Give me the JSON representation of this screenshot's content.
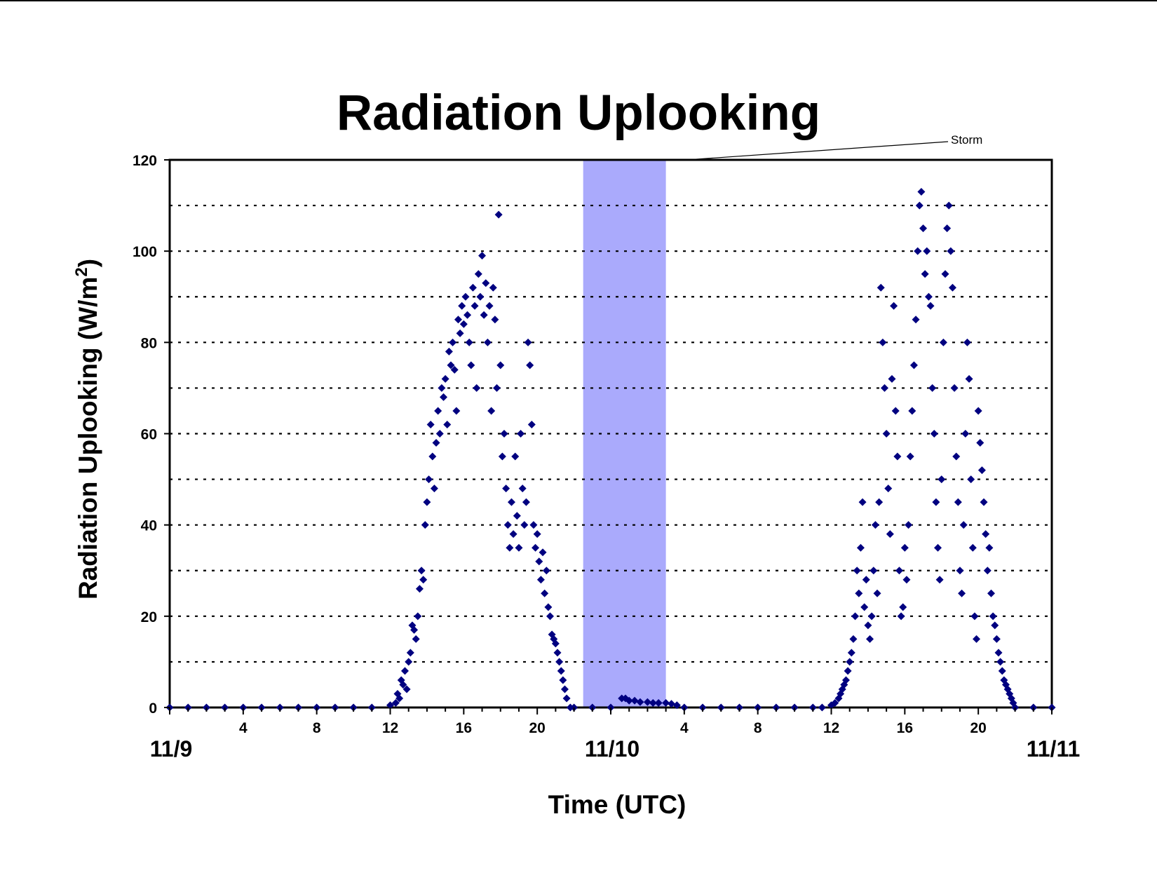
{
  "chart_data": {
    "type": "scatter",
    "title": "Radiation Uplooking",
    "xlabel": "Time (UTC)",
    "ylabel": "Radiation Uplooking (W/m",
    "ylabel_superscript": "2",
    "ylabel_close": ")",
    "x_unit": "hours since 11/9 00:00 UTC",
    "xlim": [
      0,
      48
    ],
    "ylim": [
      0,
      120
    ],
    "y_ticks": [
      0,
      20,
      40,
      60,
      80,
      100,
      120
    ],
    "y_gridlines": [
      10,
      20,
      30,
      40,
      50,
      60,
      70,
      80,
      90,
      100,
      110
    ],
    "grid": "horizontal dotted",
    "x_hour_ticks": [
      {
        "x": 4,
        "label": "4"
      },
      {
        "x": 8,
        "label": "8"
      },
      {
        "x": 12,
        "label": "12"
      },
      {
        "x": 16,
        "label": "16"
      },
      {
        "x": 20,
        "label": "20"
      },
      {
        "x": 28,
        "label": "4"
      },
      {
        "x": 32,
        "label": "8"
      },
      {
        "x": 36,
        "label": "12"
      },
      {
        "x": 40,
        "label": "16"
      },
      {
        "x": 44,
        "label": "20"
      }
    ],
    "x_date_labels": [
      {
        "x": 0,
        "label": "11/9"
      },
      {
        "x": 24,
        "label": "11/10"
      },
      {
        "x": 48,
        "label": "11/11"
      }
    ],
    "shaded_region": {
      "label": "Storm",
      "x_start": 22.5,
      "x_end": 27.0,
      "color": "#aaaafc"
    },
    "marker_color": "#000080",
    "series": [
      {
        "points": [
          [
            0,
            0
          ],
          [
            1,
            0
          ],
          [
            2,
            0
          ],
          [
            3,
            0
          ],
          [
            4,
            0
          ],
          [
            5,
            0
          ],
          [
            6,
            0
          ],
          [
            7,
            0
          ],
          [
            8,
            0
          ],
          [
            9,
            0
          ],
          [
            10,
            0
          ],
          [
            11,
            0
          ],
          [
            12,
            0.5
          ],
          [
            12.3,
            1
          ],
          [
            12.4,
            3
          ],
          [
            12.5,
            2
          ],
          [
            12.6,
            6
          ],
          [
            12.7,
            5
          ],
          [
            12.8,
            8
          ],
          [
            12.9,
            4
          ],
          [
            13.0,
            10
          ],
          [
            13.1,
            12
          ],
          [
            13.2,
            18
          ],
          [
            13.3,
            17
          ],
          [
            13.4,
            15
          ],
          [
            13.5,
            20
          ],
          [
            13.6,
            26
          ],
          [
            13.7,
            30
          ],
          [
            13.8,
            28
          ],
          [
            13.9,
            40
          ],
          [
            14.0,
            45
          ],
          [
            14.1,
            50
          ],
          [
            14.2,
            62
          ],
          [
            14.3,
            55
          ],
          [
            14.4,
            48
          ],
          [
            14.5,
            58
          ],
          [
            14.6,
            65
          ],
          [
            14.7,
            60
          ],
          [
            14.8,
            70
          ],
          [
            14.9,
            68
          ],
          [
            15.0,
            72
          ],
          [
            15.1,
            62
          ],
          [
            15.2,
            78
          ],
          [
            15.3,
            75
          ],
          [
            15.4,
            80
          ],
          [
            15.5,
            74
          ],
          [
            15.6,
            65
          ],
          [
            15.7,
            85
          ],
          [
            15.8,
            82
          ],
          [
            15.9,
            88
          ],
          [
            16.0,
            84
          ],
          [
            16.1,
            90
          ],
          [
            16.2,
            86
          ],
          [
            16.3,
            80
          ],
          [
            16.4,
            75
          ],
          [
            16.5,
            92
          ],
          [
            16.6,
            88
          ],
          [
            16.7,
            70
          ],
          [
            16.8,
            95
          ],
          [
            16.9,
            90
          ],
          [
            17.0,
            99
          ],
          [
            17.1,
            86
          ],
          [
            17.2,
            93
          ],
          [
            17.3,
            80
          ],
          [
            17.4,
            88
          ],
          [
            17.5,
            65
          ],
          [
            17.6,
            92
          ],
          [
            17.7,
            85
          ],
          [
            17.8,
            70
          ],
          [
            17.9,
            108
          ],
          [
            18.0,
            75
          ],
          [
            18.1,
            55
          ],
          [
            18.2,
            60
          ],
          [
            18.3,
            48
          ],
          [
            18.4,
            40
          ],
          [
            18.5,
            35
          ],
          [
            18.6,
            45
          ],
          [
            18.7,
            38
          ],
          [
            18.8,
            55
          ],
          [
            18.9,
            42
          ],
          [
            19.0,
            35
          ],
          [
            19.1,
            60
          ],
          [
            19.2,
            48
          ],
          [
            19.3,
            40
          ],
          [
            19.4,
            45
          ],
          [
            19.5,
            80
          ],
          [
            19.6,
            75
          ],
          [
            19.7,
            62
          ],
          [
            19.8,
            40
          ],
          [
            19.9,
            35
          ],
          [
            20.0,
            38
          ],
          [
            20.1,
            32
          ],
          [
            20.2,
            28
          ],
          [
            20.3,
            34
          ],
          [
            20.4,
            25
          ],
          [
            20.5,
            30
          ],
          [
            20.6,
            22
          ],
          [
            20.7,
            20
          ],
          [
            20.8,
            16
          ],
          [
            20.9,
            15
          ],
          [
            21.0,
            14
          ],
          [
            21.1,
            12
          ],
          [
            21.2,
            10
          ],
          [
            21.3,
            8
          ],
          [
            21.4,
            6
          ],
          [
            21.5,
            4
          ],
          [
            21.6,
            2
          ],
          [
            21.8,
            0
          ],
          [
            22,
            0
          ],
          [
            23,
            0
          ],
          [
            24,
            0
          ],
          [
            24.6,
            2
          ],
          [
            24.8,
            2
          ],
          [
            25.0,
            1.5
          ],
          [
            25.3,
            1.5
          ],
          [
            25.6,
            1.2
          ],
          [
            26.0,
            1.2
          ],
          [
            26.3,
            1
          ],
          [
            26.6,
            1
          ],
          [
            27.0,
            1
          ],
          [
            27.3,
            0.8
          ],
          [
            27.6,
            0.5
          ],
          [
            28,
            0
          ],
          [
            29,
            0
          ],
          [
            30,
            0
          ],
          [
            31,
            0
          ],
          [
            32,
            0
          ],
          [
            33,
            0
          ],
          [
            34,
            0
          ],
          [
            35,
            0
          ],
          [
            35.5,
            0
          ],
          [
            36,
            0.5
          ],
          [
            36.2,
            1
          ],
          [
            36.4,
            2
          ],
          [
            36.5,
            3
          ],
          [
            36.6,
            4
          ],
          [
            36.7,
            5
          ],
          [
            36.8,
            6
          ],
          [
            36.9,
            8
          ],
          [
            37.0,
            10
          ],
          [
            37.1,
            12
          ],
          [
            37.2,
            15
          ],
          [
            37.3,
            20
          ],
          [
            37.4,
            30
          ],
          [
            37.5,
            25
          ],
          [
            37.6,
            35
          ],
          [
            37.7,
            45
          ],
          [
            37.8,
            22
          ],
          [
            37.9,
            28
          ],
          [
            38.0,
            18
          ],
          [
            38.1,
            15
          ],
          [
            38.2,
            20
          ],
          [
            38.3,
            30
          ],
          [
            38.4,
            40
          ],
          [
            38.5,
            25
          ],
          [
            38.6,
            45
          ],
          [
            38.7,
            92
          ],
          [
            38.8,
            80
          ],
          [
            38.9,
            70
          ],
          [
            39.0,
            60
          ],
          [
            39.1,
            48
          ],
          [
            39.2,
            38
          ],
          [
            39.3,
            72
          ],
          [
            39.4,
            88
          ],
          [
            39.5,
            65
          ],
          [
            39.6,
            55
          ],
          [
            39.7,
            30
          ],
          [
            39.8,
            20
          ],
          [
            39.9,
            22
          ],
          [
            40.0,
            35
          ],
          [
            40.1,
            28
          ],
          [
            40.2,
            40
          ],
          [
            40.3,
            55
          ],
          [
            40.4,
            65
          ],
          [
            40.5,
            75
          ],
          [
            40.6,
            85
          ],
          [
            40.7,
            100
          ],
          [
            40.8,
            110
          ],
          [
            40.9,
            113
          ],
          [
            41.0,
            105
          ],
          [
            41.1,
            95
          ],
          [
            41.2,
            100
          ],
          [
            41.3,
            90
          ],
          [
            41.4,
            88
          ],
          [
            41.5,
            70
          ],
          [
            41.6,
            60
          ],
          [
            41.7,
            45
          ],
          [
            41.8,
            35
          ],
          [
            41.9,
            28
          ],
          [
            42.0,
            50
          ],
          [
            42.1,
            80
          ],
          [
            42.2,
            95
          ],
          [
            42.3,
            105
          ],
          [
            42.4,
            110
          ],
          [
            42.5,
            100
          ],
          [
            42.6,
            92
          ],
          [
            42.7,
            70
          ],
          [
            42.8,
            55
          ],
          [
            42.9,
            45
          ],
          [
            43.0,
            30
          ],
          [
            43.1,
            25
          ],
          [
            43.2,
            40
          ],
          [
            43.3,
            60
          ],
          [
            43.4,
            80
          ],
          [
            43.5,
            72
          ],
          [
            43.6,
            50
          ],
          [
            43.7,
            35
          ],
          [
            43.8,
            20
          ],
          [
            43.9,
            15
          ],
          [
            44.0,
            65
          ],
          [
            44.1,
            58
          ],
          [
            44.2,
            52
          ],
          [
            44.3,
            45
          ],
          [
            44.4,
            38
          ],
          [
            44.5,
            30
          ],
          [
            44.6,
            35
          ],
          [
            44.7,
            25
          ],
          [
            44.8,
            20
          ],
          [
            44.9,
            18
          ],
          [
            45.0,
            15
          ],
          [
            45.1,
            12
          ],
          [
            45.2,
            10
          ],
          [
            45.3,
            8
          ],
          [
            45.4,
            6
          ],
          [
            45.5,
            5
          ],
          [
            45.6,
            4
          ],
          [
            45.7,
            3
          ],
          [
            45.8,
            2
          ],
          [
            45.9,
            1
          ],
          [
            46,
            0
          ],
          [
            47,
            0
          ],
          [
            48,
            0
          ]
        ]
      }
    ]
  }
}
